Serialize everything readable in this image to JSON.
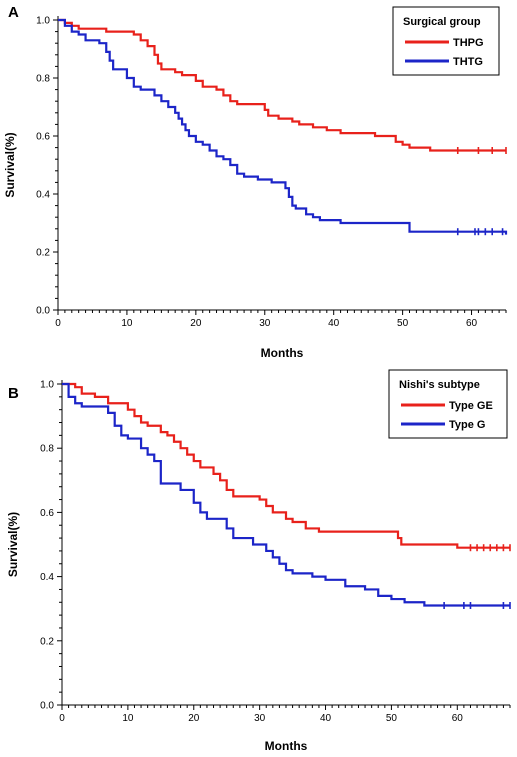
{
  "colors": {
    "red": "#e8211b",
    "blue": "#1c25c8",
    "axis": "#000000"
  },
  "chart_data": [
    {
      "type": "line",
      "panel_label": "A",
      "xlabel": "Months",
      "ylabel": "Survival(%)",
      "xlim": [
        0,
        65
      ],
      "ylim": [
        0,
        1.0
      ],
      "xticks": [
        "0",
        "10",
        "20",
        "30",
        "40",
        "50",
        "60"
      ],
      "yticks": [
        "0.0",
        "0.2",
        "0.4",
        "0.6",
        "0.8",
        "1.0"
      ],
      "legend": {
        "title": "Surgical group",
        "position": "top-right"
      },
      "series": [
        {
          "name": "THPG",
          "color": "#e8211b",
          "step": true,
          "points": [
            [
              0,
              1.0
            ],
            [
              1,
              0.99
            ],
            [
              2,
              0.98
            ],
            [
              3,
              0.97
            ],
            [
              7,
              0.96
            ],
            [
              11,
              0.95
            ],
            [
              12,
              0.93
            ],
            [
              13,
              0.91
            ],
            [
              14,
              0.88
            ],
            [
              14.5,
              0.85
            ],
            [
              15,
              0.83
            ],
            [
              17,
              0.82
            ],
            [
              18,
              0.81
            ],
            [
              20,
              0.79
            ],
            [
              21,
              0.77
            ],
            [
              23,
              0.76
            ],
            [
              24,
              0.74
            ],
            [
              25,
              0.72
            ],
            [
              26,
              0.71
            ],
            [
              30,
              0.69
            ],
            [
              30.5,
              0.67
            ],
            [
              32,
              0.66
            ],
            [
              34,
              0.65
            ],
            [
              35,
              0.64
            ],
            [
              37,
              0.63
            ],
            [
              39,
              0.62
            ],
            [
              41,
              0.61
            ],
            [
              46,
              0.6
            ],
            [
              49,
              0.58
            ],
            [
              50,
              0.57
            ],
            [
              51,
              0.56
            ],
            [
              54,
              0.55
            ],
            [
              65,
              0.55
            ]
          ],
          "censors": [
            58,
            61,
            63,
            65
          ]
        },
        {
          "name": "THTG",
          "color": "#1c25c8",
          "step": true,
          "points": [
            [
              0,
              1.0
            ],
            [
              1,
              0.98
            ],
            [
              2,
              0.96
            ],
            [
              3,
              0.95
            ],
            [
              4,
              0.93
            ],
            [
              6,
              0.92
            ],
            [
              7,
              0.89
            ],
            [
              7.5,
              0.86
            ],
            [
              8,
              0.83
            ],
            [
              10,
              0.8
            ],
            [
              11,
              0.77
            ],
            [
              12,
              0.76
            ],
            [
              14,
              0.74
            ],
            [
              15,
              0.72
            ],
            [
              16,
              0.7
            ],
            [
              17,
              0.68
            ],
            [
              17.5,
              0.66
            ],
            [
              18,
              0.64
            ],
            [
              18.5,
              0.62
            ],
            [
              19,
              0.6
            ],
            [
              20,
              0.58
            ],
            [
              21,
              0.57
            ],
            [
              22,
              0.55
            ],
            [
              23,
              0.53
            ],
            [
              24,
              0.52
            ],
            [
              25,
              0.5
            ],
            [
              26,
              0.47
            ],
            [
              27,
              0.46
            ],
            [
              29,
              0.45
            ],
            [
              31,
              0.44
            ],
            [
              33,
              0.42
            ],
            [
              33.5,
              0.39
            ],
            [
              34,
              0.36
            ],
            [
              34.5,
              0.35
            ],
            [
              36,
              0.33
            ],
            [
              37,
              0.32
            ],
            [
              38,
              0.31
            ],
            [
              41,
              0.3
            ],
            [
              51,
              0.27
            ],
            [
              65,
              0.26
            ]
          ],
          "censors": [
            58,
            60.5,
            61,
            62,
            63,
            64.5
          ]
        }
      ]
    },
    {
      "type": "line",
      "panel_label": "B",
      "xlabel": "Months",
      "ylabel": "Survival(%)",
      "xlim": [
        0,
        68
      ],
      "ylim": [
        0,
        1.0
      ],
      "xticks": [
        "0",
        "10",
        "20",
        "30",
        "40",
        "50",
        "60"
      ],
      "yticks": [
        "0.0",
        "0.2",
        "0.4",
        "0.6",
        "0.8",
        "1.0"
      ],
      "legend": {
        "title": "Nishi's subtype",
        "position": "top-right"
      },
      "series": [
        {
          "name": "Type  GE",
          "color": "#e8211b",
          "step": true,
          "points": [
            [
              0,
              1.0
            ],
            [
              2,
              0.99
            ],
            [
              3,
              0.97
            ],
            [
              5,
              0.96
            ],
            [
              7,
              0.94
            ],
            [
              10,
              0.92
            ],
            [
              11,
              0.9
            ],
            [
              12,
              0.88
            ],
            [
              13,
              0.87
            ],
            [
              15,
              0.85
            ],
            [
              16,
              0.84
            ],
            [
              17,
              0.82
            ],
            [
              18,
              0.8
            ],
            [
              19,
              0.78
            ],
            [
              20,
              0.76
            ],
            [
              21,
              0.74
            ],
            [
              23,
              0.72
            ],
            [
              24,
              0.7
            ],
            [
              25,
              0.67
            ],
            [
              26,
              0.65
            ],
            [
              30,
              0.64
            ],
            [
              31,
              0.62
            ],
            [
              32,
              0.6
            ],
            [
              34,
              0.58
            ],
            [
              35,
              0.57
            ],
            [
              37,
              0.55
            ],
            [
              39,
              0.54
            ],
            [
              51,
              0.52
            ],
            [
              51.5,
              0.5
            ],
            [
              60,
              0.49
            ],
            [
              68,
              0.49
            ]
          ],
          "censors": [
            62,
            63,
            64,
            65,
            66,
            67,
            68
          ]
        },
        {
          "name": "Type  G",
          "color": "#1c25c8",
          "step": true,
          "points": [
            [
              0,
              1.0
            ],
            [
              1,
              0.96
            ],
            [
              2,
              0.94
            ],
            [
              3,
              0.93
            ],
            [
              7,
              0.91
            ],
            [
              8,
              0.87
            ],
            [
              9,
              0.84
            ],
            [
              10,
              0.83
            ],
            [
              12,
              0.8
            ],
            [
              13,
              0.78
            ],
            [
              14,
              0.76
            ],
            [
              15,
              0.69
            ],
            [
              18,
              0.67
            ],
            [
              20,
              0.63
            ],
            [
              21,
              0.6
            ],
            [
              22,
              0.58
            ],
            [
              25,
              0.55
            ],
            [
              26,
              0.52
            ],
            [
              29,
              0.5
            ],
            [
              31,
              0.48
            ],
            [
              32,
              0.46
            ],
            [
              33,
              0.44
            ],
            [
              34,
              0.42
            ],
            [
              35,
              0.41
            ],
            [
              38,
              0.4
            ],
            [
              40,
              0.39
            ],
            [
              43,
              0.37
            ],
            [
              46,
              0.36
            ],
            [
              48,
              0.34
            ],
            [
              50,
              0.33
            ],
            [
              52,
              0.32
            ],
            [
              55,
              0.31
            ],
            [
              68,
              0.31
            ]
          ],
          "censors": [
            58,
            61,
            62,
            67,
            68
          ]
        }
      ]
    }
  ]
}
